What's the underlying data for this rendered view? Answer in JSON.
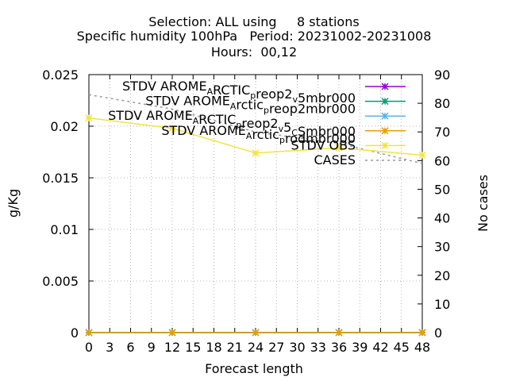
{
  "chart_data": {
    "type": "line",
    "title_lines": [
      "Selection: ALL using     8 stations",
      "Specific humidity 100hPa   Period: 20231002-20231008",
      "Hours:  00,12"
    ],
    "xlabel": "Forecast length",
    "ylabel": "g/Kg",
    "y2label": "No cases",
    "xlim": [
      0,
      48
    ],
    "ylim": [
      0,
      0.025
    ],
    "y2lim": [
      0,
      90
    ],
    "xticks": [
      0,
      3,
      6,
      9,
      12,
      15,
      18,
      21,
      24,
      27,
      30,
      33,
      36,
      39,
      42,
      45,
      48
    ],
    "yticks": [
      "0",
      "0.005",
      "0.01",
      "0.015",
      "0.02",
      "0.025"
    ],
    "y2ticks": [
      "0",
      "10",
      "20",
      "30",
      "40",
      "50",
      "60",
      "70",
      "80",
      "90"
    ],
    "grid": true,
    "legend_position": "top-right",
    "x": [
      0,
      12,
      24,
      36,
      48
    ],
    "series": [
      {
        "name_parts": [
          [
            "STDV AROME",
            ""
          ],
          [
            "A",
            "sub"
          ],
          [
            "RCTIC",
            ""
          ],
          [
            "p",
            "sub"
          ],
          [
            "reop2",
            ""
          ],
          [
            "v",
            "sub"
          ],
          [
            "5mbr000",
            ""
          ]
        ],
        "color": "#9400d3",
        "marker": "x",
        "axis": "y",
        "values": [
          0,
          0,
          0,
          0,
          0
        ]
      },
      {
        "name_parts": [
          [
            "STDV AROME",
            ""
          ],
          [
            "A",
            "sub"
          ],
          [
            "rctic",
            ""
          ],
          [
            "p",
            "sub"
          ],
          [
            "reop2mbr000",
            ""
          ]
        ],
        "color": "#009e73",
        "marker": "x",
        "axis": "y",
        "values": [
          0,
          0,
          0,
          0,
          0
        ]
      },
      {
        "name_parts": [
          [
            "STDV AROME",
            ""
          ],
          [
            "A",
            "sub"
          ],
          [
            "RCTIC",
            ""
          ],
          [
            "p",
            "sub"
          ],
          [
            "reop2",
            ""
          ],
          [
            "v",
            "sub"
          ],
          [
            "5",
            ""
          ],
          [
            "C",
            "sub"
          ],
          [
            "Smbr000",
            ""
          ]
        ],
        "color": "#56b4e9",
        "marker": "x",
        "axis": "y",
        "values": [
          0,
          0,
          0,
          0,
          0
        ]
      },
      {
        "name_parts": [
          [
            "STDV AROME",
            ""
          ],
          [
            "A",
            "sub"
          ],
          [
            "rctic",
            ""
          ],
          [
            "p",
            "sub"
          ],
          [
            "rodmbr000",
            ""
          ]
        ],
        "color": "#e69f00",
        "marker": "x",
        "axis": "y",
        "values": [
          0,
          0,
          0,
          0,
          0
        ]
      },
      {
        "name_parts": [
          [
            "STDV OBS",
            ""
          ]
        ],
        "color": "#f0e442",
        "marker": "x",
        "axis": "y",
        "values": [
          0.0208,
          0.0198,
          0.0174,
          0.0179,
          0.0172
        ]
      },
      {
        "name_parts": [
          [
            "CASES",
            ""
          ]
        ],
        "color": "#999999",
        "marker": "none",
        "dash": true,
        "axis": "y2",
        "values": [
          83,
          78,
          70,
          66,
          59
        ]
      }
    ]
  }
}
